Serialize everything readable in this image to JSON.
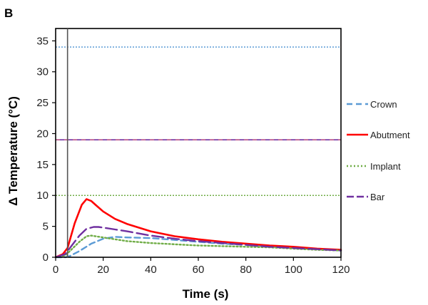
{
  "panel_label": "B",
  "chart_data": {
    "type": "line",
    "title": "",
    "xlabel": "Time (s)",
    "ylabel": "Δ Temperature  (°C)",
    "xlim": [
      0,
      120
    ],
    "ylim": [
      0,
      37
    ],
    "xticks": [
      0,
      20,
      40,
      60,
      80,
      100,
      120
    ],
    "yticks": [
      0,
      5,
      10,
      15,
      20,
      25,
      30,
      35
    ],
    "vertical_marker_x": 5,
    "series": [
      {
        "name": "Crown",
        "color": "#5b9bd5",
        "dash": "dashed",
        "x": [
          0,
          4,
          6,
          10,
          15,
          20,
          25,
          30,
          40,
          50,
          60,
          70,
          80,
          90,
          100,
          110,
          120
        ],
        "y": [
          0,
          0,
          0.2,
          1.0,
          2.2,
          3.0,
          3.3,
          3.2,
          3.1,
          2.8,
          2.5,
          2.2,
          2.0,
          1.7,
          1.5,
          1.3,
          1.1
        ]
      },
      {
        "name": "Abutment",
        "color": "#ff0000",
        "dash": "solid",
        "x": [
          0,
          3,
          5,
          8,
          11,
          13,
          15,
          17,
          20,
          25,
          30,
          40,
          50,
          60,
          70,
          80,
          90,
          100,
          110,
          120
        ],
        "y": [
          0,
          0.5,
          1.5,
          5.5,
          8.5,
          9.4,
          9.1,
          8.4,
          7.4,
          6.2,
          5.4,
          4.2,
          3.4,
          2.9,
          2.5,
          2.2,
          1.9,
          1.7,
          1.4,
          1.2
        ]
      },
      {
        "name": "Implant",
        "color": "#70ad47",
        "dash": "dotted",
        "x": [
          0,
          4,
          6,
          10,
          13,
          15,
          20,
          25,
          30,
          40,
          50,
          60,
          70,
          80,
          90,
          100,
          110,
          120
        ],
        "y": [
          0,
          0.3,
          1.0,
          2.5,
          3.4,
          3.5,
          3.2,
          2.9,
          2.6,
          2.3,
          2.1,
          1.9,
          1.8,
          1.7,
          1.6,
          1.4,
          1.2,
          1.1
        ]
      },
      {
        "name": "Bar",
        "color": "#7030a0",
        "dash": "longdash",
        "x": [
          0,
          4,
          6,
          10,
          13,
          16,
          18,
          20,
          25,
          30,
          40,
          50,
          60,
          70,
          80,
          90,
          100,
          110,
          120
        ],
        "y": [
          0,
          0.5,
          1.5,
          3.5,
          4.6,
          4.9,
          4.9,
          4.8,
          4.5,
          4.2,
          3.5,
          3.0,
          2.6,
          2.3,
          2.0,
          1.7,
          1.5,
          1.3,
          1.1
        ]
      }
    ],
    "reference_lines": [
      {
        "y": 34,
        "color": "#5b9bd5",
        "style": "dotted"
      },
      {
        "y": 19,
        "color": "#7030a0",
        "style": "solid-red-dashed"
      },
      {
        "y": 10,
        "color": "#70ad47",
        "style": "dotted"
      }
    ]
  }
}
